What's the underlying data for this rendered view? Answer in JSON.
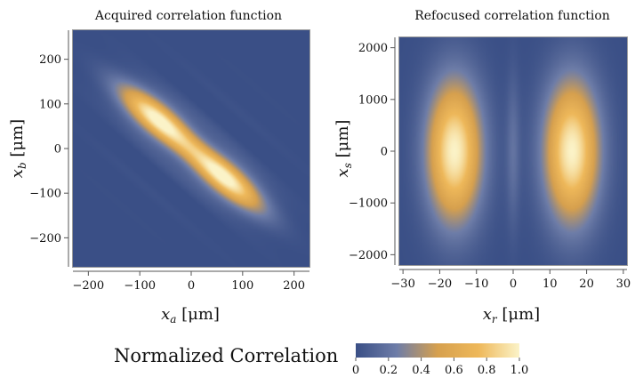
{
  "chart_data": [
    {
      "type": "heatmap",
      "title": "Acquired correlation function",
      "xlabel": "x_a [μm]",
      "ylabel": "x_b [μm]",
      "xlim": [
        -230,
        230
      ],
      "ylim": [
        -265,
        265
      ],
      "xticks": [
        -200,
        -100,
        0,
        100,
        200
      ],
      "yticks": [
        -200,
        -100,
        0,
        100,
        200
      ],
      "xtick_labels": [
        "−200",
        "−100",
        "0",
        "100",
        "200"
      ],
      "ytick_labels": [
        "−200",
        "−100",
        "0",
        "100",
        "200"
      ],
      "peaks": [
        {
          "x": -65,
          "y": 65,
          "value": 1.0
        },
        {
          "x": 65,
          "y": -65,
          "value": 1.0
        }
      ],
      "colorscale": {
        "min": 0,
        "max": 1
      }
    },
    {
      "type": "heatmap",
      "title": "Refocused correlation function",
      "xlabel": "x_r [μm]",
      "ylabel": "x_s [μm]",
      "xlim": [
        -31,
        31
      ],
      "ylim": [
        -2200,
        2200
      ],
      "xticks": [
        -30,
        -20,
        -10,
        0,
        10,
        20,
        30
      ],
      "yticks": [
        -2000,
        -1000,
        0,
        1000,
        2000
      ],
      "xtick_labels": [
        "−30",
        "−20",
        "−10",
        "0",
        "10",
        "20",
        "30"
      ],
      "ytick_labels": [
        "−2000",
        "−1000",
        "0",
        "1000",
        "2000"
      ],
      "peaks": [
        {
          "x": -16,
          "y": 0,
          "value": 1.0
        },
        {
          "x": 16,
          "y": 0,
          "value": 1.0
        }
      ],
      "colorscale": {
        "min": 0,
        "max": 1
      }
    }
  ],
  "colorbar": {
    "label": "Normalized Correlation",
    "ticks": [
      0,
      0.2,
      0.4,
      0.6,
      0.8,
      1.0
    ],
    "tick_labels": [
      "0",
      "0.2",
      "0.4",
      "0.6",
      "0.8",
      "1.0"
    ],
    "colors": [
      "#3a4f86",
      "#6e7da8",
      "#d6a04e",
      "#eeb85a",
      "#fbf3c8"
    ]
  }
}
